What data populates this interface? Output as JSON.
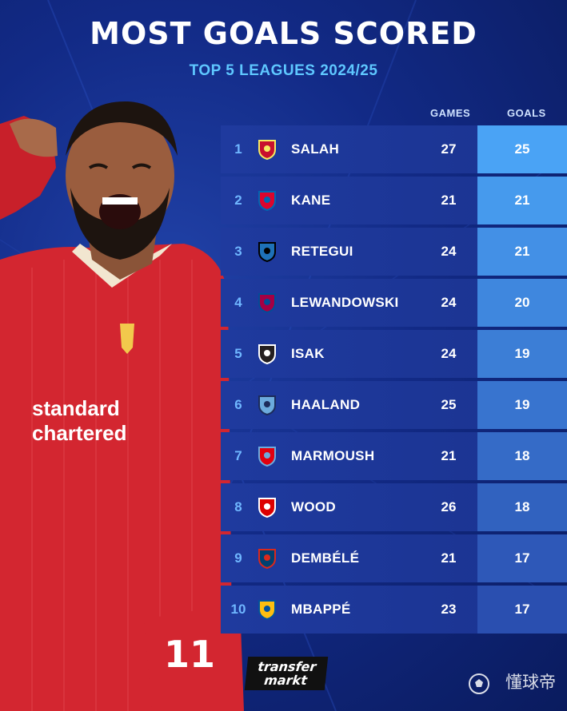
{
  "header": {
    "title": "MOST GOALS SCORED",
    "subtitle": "TOP 5 LEAGUES 2024/25"
  },
  "columns": {
    "games": "GAMES",
    "goals": "GOALS"
  },
  "rows": [
    {
      "rank": "1",
      "player": "SALAH",
      "games": "27",
      "goals": "25",
      "club_icon": "liverpool-crest-icon"
    },
    {
      "rank": "2",
      "player": "KANE",
      "games": "21",
      "goals": "21",
      "club_icon": "bayern-crest-icon"
    },
    {
      "rank": "3",
      "player": "RETEGUI",
      "games": "24",
      "goals": "21",
      "club_icon": "atalanta-crest-icon"
    },
    {
      "rank": "4",
      "player": "LEWANDOWSKI",
      "games": "24",
      "goals": "20",
      "club_icon": "barcelona-crest-icon"
    },
    {
      "rank": "5",
      "player": "ISAK",
      "games": "24",
      "goals": "19",
      "club_icon": "newcastle-crest-icon"
    },
    {
      "rank": "6",
      "player": "HAALAND",
      "games": "25",
      "goals": "19",
      "club_icon": "man-city-crest-icon"
    },
    {
      "rank": "7",
      "player": "MARMOUSH",
      "games": "21",
      "goals": "18",
      "club_icon": "frankfurt-mancity-crest-icon"
    },
    {
      "rank": "8",
      "player": "WOOD",
      "games": "26",
      "goals": "18",
      "club_icon": "nottingham-forest-crest-icon"
    },
    {
      "rank": "9",
      "player": "DEMBÉLÉ",
      "games": "21",
      "goals": "17",
      "club_icon": "psg-crest-icon"
    },
    {
      "rank": "10",
      "player": "MBAPPÉ",
      "games": "23",
      "goals": "17",
      "club_icon": "real-madrid-crest-icon"
    }
  ],
  "branding": {
    "logo_line1": "transfer",
    "logo_line2": "markt",
    "watermark": "懂球帝"
  },
  "colors": {
    "title": "#ffffff",
    "subtitle": "#5ec7ff",
    "goals_top": "#4aa3f5",
    "goals_bottom": "#2a4fb0",
    "row_bg": "#1f3a9e",
    "rank": "#6fb6ff"
  }
}
